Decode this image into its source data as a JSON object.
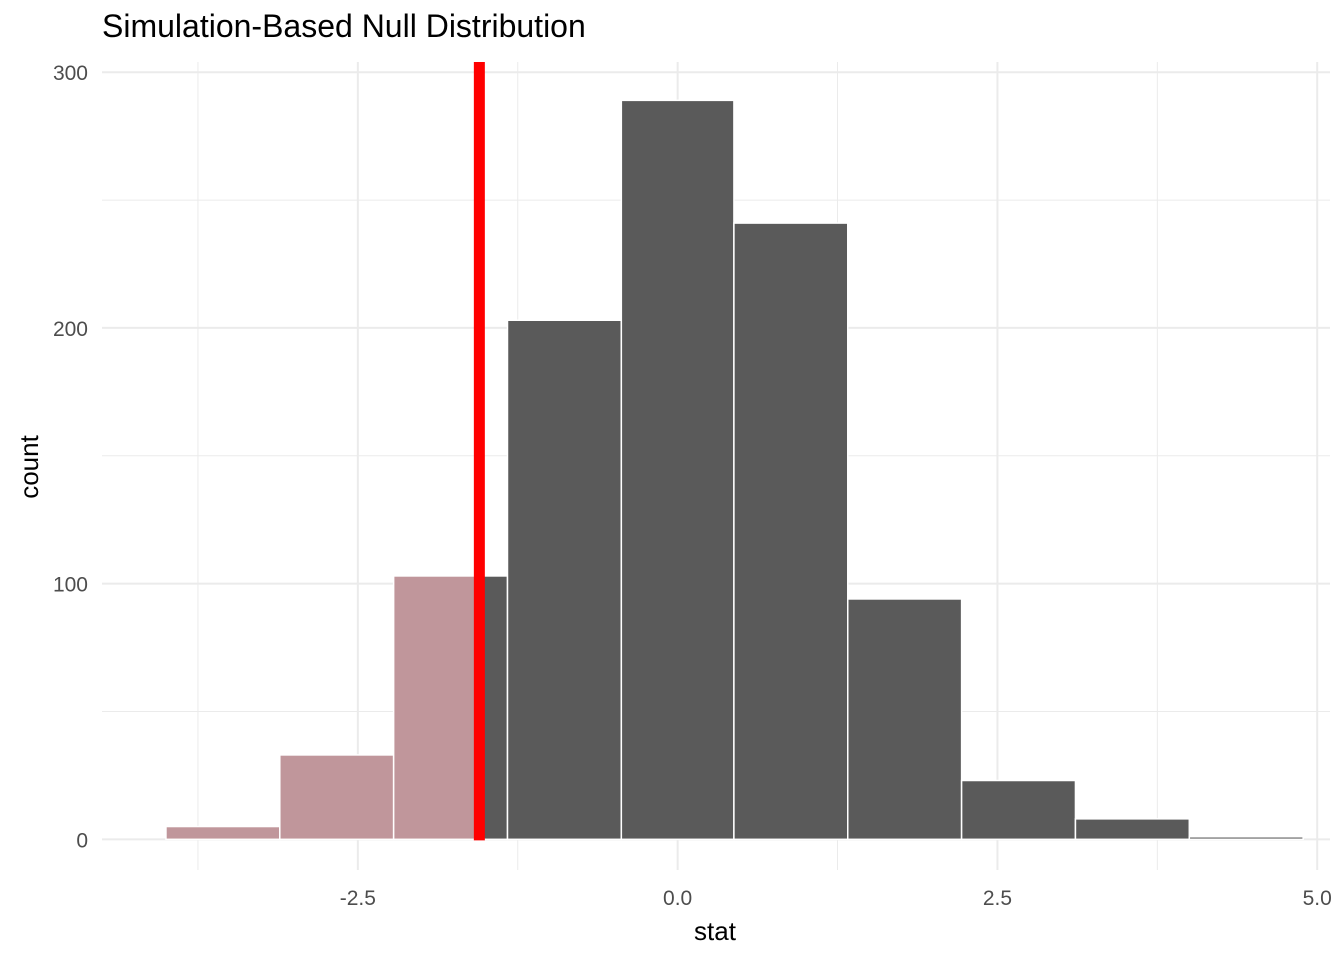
{
  "chart_data": {
    "type": "bar",
    "title": "Simulation-Based Null Distribution",
    "xlabel": "stat",
    "ylabel": "count",
    "xlim": [
      -4.5,
      5.1
    ],
    "ylim": [
      -12,
      304
    ],
    "x_ticks": [
      -2.5,
      0.0,
      2.5,
      5.0
    ],
    "x_tick_labels": [
      "-2.5",
      "0.0",
      "2.5",
      "5.0"
    ],
    "y_ticks": [
      0,
      100,
      200,
      300
    ],
    "y_tick_labels": [
      "0",
      "100",
      "200",
      "300"
    ],
    "x_minor_ticks": [
      -3.75,
      -1.25,
      1.25,
      3.75
    ],
    "y_minor_ticks": [
      50,
      150,
      250
    ],
    "grid": true,
    "bins": [
      {
        "x0": -4.0,
        "x1": -3.11,
        "count": 5
      },
      {
        "x0": -3.11,
        "x1": -2.22,
        "count": 33
      },
      {
        "x0": -2.22,
        "x1": -1.33,
        "count": 103
      },
      {
        "x0": -1.33,
        "x1": -0.44,
        "count": 203
      },
      {
        "x0": -0.44,
        "x1": 0.44,
        "count": 289
      },
      {
        "x0": 0.44,
        "x1": 1.33,
        "count": 241
      },
      {
        "x0": 1.33,
        "x1": 2.22,
        "count": 94
      },
      {
        "x0": 2.22,
        "x1": 3.11,
        "count": 23
      },
      {
        "x0": 3.11,
        "x1": 4.0,
        "count": 8
      },
      {
        "x0": 4.0,
        "x1": 4.89,
        "count": 1
      }
    ],
    "observed_stat": -1.55,
    "shade_direction": "less",
    "colors": {
      "bar": "#5a5a5a",
      "shaded": "#c0969b",
      "observed_line": "#ff0000",
      "bar_border": "#ffffff",
      "grid": "#ebebeb"
    }
  }
}
